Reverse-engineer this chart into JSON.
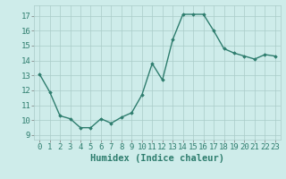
{
  "x": [
    0,
    1,
    2,
    3,
    4,
    5,
    6,
    7,
    8,
    9,
    10,
    11,
    12,
    13,
    14,
    15,
    16,
    17,
    18,
    19,
    20,
    21,
    22,
    23
  ],
  "y": [
    13.1,
    11.9,
    10.3,
    10.1,
    9.5,
    9.5,
    10.1,
    9.8,
    10.2,
    10.5,
    11.7,
    13.8,
    12.7,
    15.4,
    17.1,
    17.1,
    17.1,
    16.0,
    14.8,
    14.5,
    14.3,
    14.1,
    14.4,
    14.3
  ],
  "line_color": "#2e7d6e",
  "marker": "D",
  "marker_size": 1.8,
  "bg_color": "#ceecea",
  "grid_color": "#aaccc8",
  "xlabel": "Humidex (Indice chaleur)",
  "xlim": [
    -0.5,
    23.5
  ],
  "ylim": [
    8.7,
    17.7
  ],
  "yticks": [
    9,
    10,
    11,
    12,
    13,
    14,
    15,
    16,
    17
  ],
  "xticks": [
    0,
    1,
    2,
    3,
    4,
    5,
    6,
    7,
    8,
    9,
    10,
    11,
    12,
    13,
    14,
    15,
    16,
    17,
    18,
    19,
    20,
    21,
    22,
    23
  ],
  "tick_fontsize": 6.5,
  "xlabel_fontsize": 7.5,
  "linewidth": 1.0
}
